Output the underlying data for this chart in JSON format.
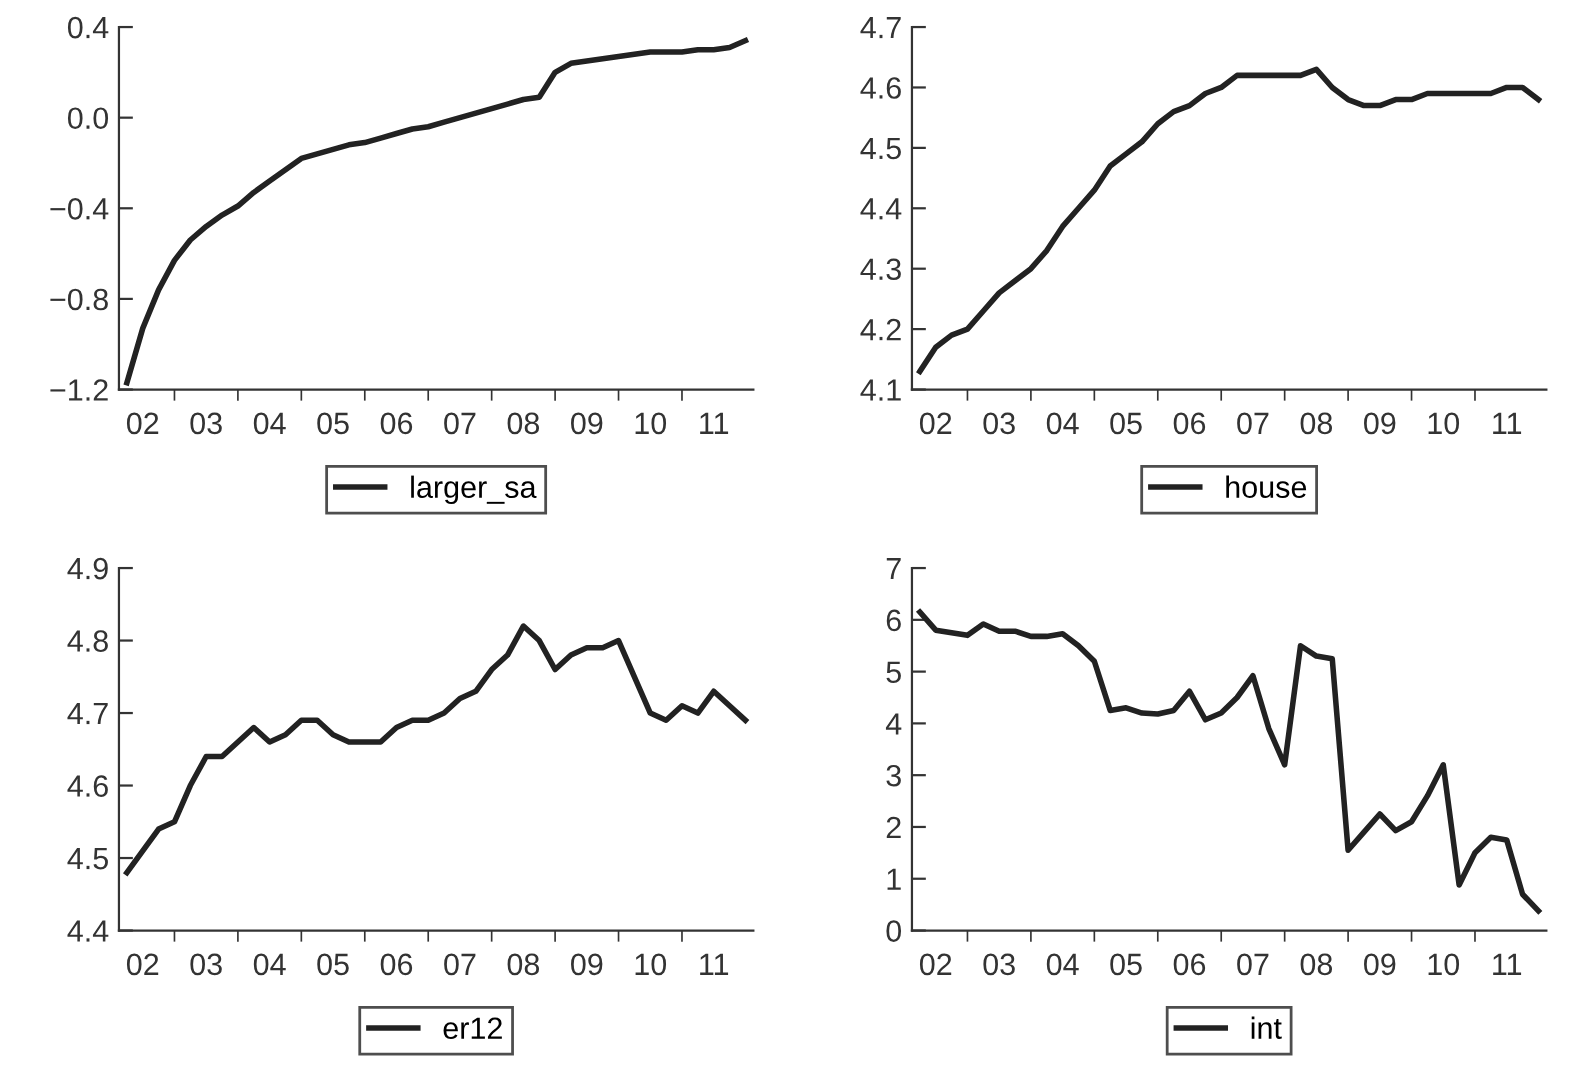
{
  "chart_data": [
    {
      "type": "line",
      "ylim": [
        -1.2,
        0.4
      ],
      "yticks": [
        {
          "value": -1.2,
          "label": "−1.2"
        },
        {
          "value": -0.8,
          "label": "−0.8"
        },
        {
          "value": -0.4,
          "label": "−0.4"
        },
        {
          "value": 0,
          "label": "0.0"
        },
        0.4
      ],
      "legend": "bottom",
      "line_style": "solid",
      "categories": [
        null,
        "02",
        null,
        null,
        null,
        "03",
        null,
        null,
        null,
        "04",
        null,
        null,
        null,
        "05",
        null,
        null,
        null,
        "06",
        null,
        null,
        null,
        "07",
        null,
        null,
        null,
        "08",
        null,
        null,
        null,
        "09",
        null,
        null,
        null,
        "10",
        null,
        null,
        null,
        "11",
        null,
        null
      ],
      "series": [
        {
          "name": "larger_sa",
          "color": "#222222",
          "values": [
            -1.17,
            -0.93,
            -0.76,
            -0.63,
            -0.54,
            -0.48,
            -0.43,
            -0.39,
            -0.33,
            -0.28,
            -0.23,
            -0.18,
            -0.16,
            -0.14,
            -0.12,
            -0.11,
            -0.09,
            -0.07,
            -0.05,
            -0.04,
            -0.02,
            0.0,
            0.02,
            0.04,
            0.06,
            0.08,
            0.09,
            0.2,
            0.24,
            0.25,
            0.26,
            0.27,
            0.28,
            0.29,
            0.29,
            0.29,
            0.3,
            0.3,
            0.31,
            0.34
          ]
        }
      ]
    },
    {
      "type": "line",
      "ylim": [
        4.1,
        4.7
      ],
      "yticks": [
        4.1,
        4.2,
        4.3,
        4.4,
        4.5,
        4.6,
        4.7
      ],
      "legend": "bottom",
      "line_style": "solid",
      "categories": [
        null,
        "02",
        null,
        null,
        null,
        "03",
        null,
        null,
        null,
        "04",
        null,
        null,
        null,
        "05",
        null,
        null,
        null,
        "06",
        null,
        null,
        null,
        "07",
        null,
        null,
        null,
        "08",
        null,
        null,
        null,
        "09",
        null,
        null,
        null,
        "10",
        null,
        null,
        null,
        "11",
        null,
        null
      ],
      "series": [
        {
          "name": "house",
          "color": "#222222",
          "values": [
            4.13,
            4.17,
            4.19,
            4.2,
            4.23,
            4.26,
            4.28,
            4.3,
            4.33,
            4.37,
            4.4,
            4.43,
            4.47,
            4.49,
            4.51,
            4.54,
            4.56,
            4.57,
            4.59,
            4.6,
            4.62,
            4.62,
            4.62,
            4.62,
            4.62,
            4.63,
            4.6,
            4.58,
            4.57,
            4.57,
            4.58,
            4.58,
            4.59,
            4.59,
            4.59,
            4.59,
            4.59,
            4.6,
            4.6,
            4.58
          ]
        }
      ]
    },
    {
      "type": "line",
      "ylim": [
        4.4,
        4.9
      ],
      "yticks": [
        4.4,
        4.5,
        4.6,
        4.7,
        4.8,
        4.9
      ],
      "legend": "bottom",
      "line_style": "solid",
      "categories": [
        null,
        "02",
        null,
        null,
        null,
        "03",
        null,
        null,
        null,
        "04",
        null,
        null,
        null,
        "05",
        null,
        null,
        null,
        "06",
        null,
        null,
        null,
        "07",
        null,
        null,
        null,
        "08",
        null,
        null,
        null,
        "09",
        null,
        null,
        null,
        "10",
        null,
        null,
        null,
        "11",
        null,
        null
      ],
      "series": [
        {
          "name": "er12",
          "color": "#222222",
          "values": [
            4.48,
            4.51,
            4.54,
            4.55,
            4.6,
            4.64,
            4.64,
            4.66,
            4.68,
            4.66,
            4.67,
            4.69,
            4.69,
            4.67,
            4.66,
            4.66,
            4.66,
            4.68,
            4.69,
            4.69,
            4.7,
            4.72,
            4.73,
            4.76,
            4.78,
            4.82,
            4.8,
            4.76,
            4.78,
            4.79,
            4.79,
            4.8,
            4.75,
            4.7,
            4.69,
            4.71,
            4.7,
            4.73,
            4.71,
            4.69
          ]
        }
      ]
    },
    {
      "type": "line",
      "ylim": [
        0,
        7
      ],
      "yticks": [
        0,
        1,
        2,
        3,
        4,
        5,
        6,
        7
      ],
      "legend": "bottom",
      "line_style": "solid",
      "categories": [
        null,
        "02",
        null,
        null,
        null,
        "03",
        null,
        null,
        null,
        "04",
        null,
        null,
        null,
        "05",
        null,
        null,
        null,
        "06",
        null,
        null,
        null,
        "07",
        null,
        null,
        null,
        "08",
        null,
        null,
        null,
        "09",
        null,
        null,
        null,
        "10",
        null,
        null,
        null,
        "11",
        null,
        null
      ],
      "series": [
        {
          "name": "int",
          "color": "#222222",
          "values": [
            6.15,
            5.8,
            5.75,
            5.7,
            5.92,
            5.78,
            5.78,
            5.68,
            5.68,
            5.73,
            5.5,
            5.2,
            4.25,
            4.3,
            4.2,
            4.18,
            4.25,
            4.62,
            4.07,
            4.2,
            4.5,
            4.92,
            3.9,
            3.2,
            5.5,
            5.3,
            5.25,
            1.55,
            1.9,
            2.25,
            1.93,
            2.1,
            2.6,
            3.2,
            0.88,
            1.5,
            1.8,
            1.75,
            0.7,
            0.38
          ]
        }
      ]
    }
  ]
}
